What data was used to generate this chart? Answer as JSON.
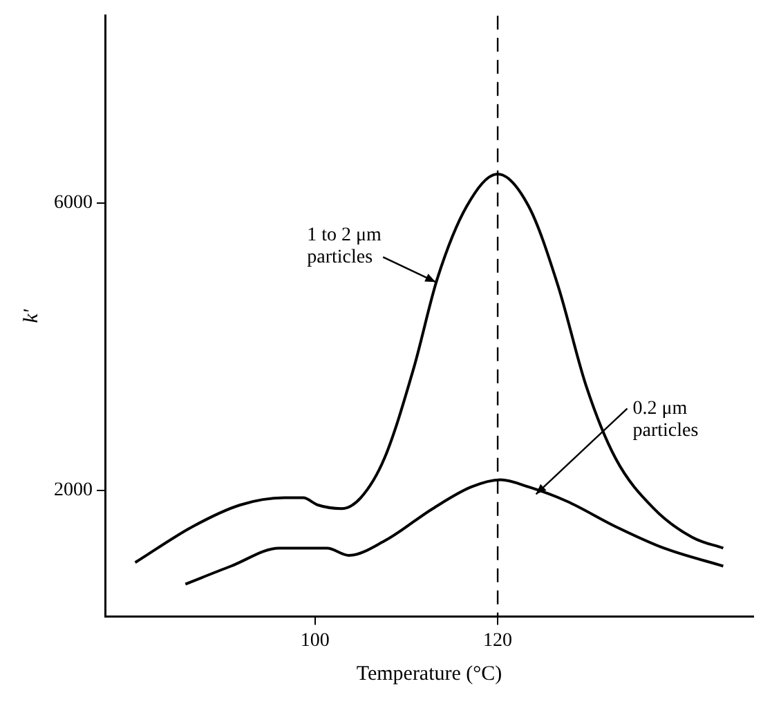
{
  "chart_data": {
    "type": "line",
    "xlabel": "Temperature (°C)",
    "ylabel": "k'",
    "xlim": [
      77,
      148
    ],
    "ylim": [
      250,
      8600
    ],
    "xticks": [
      100,
      120
    ],
    "yticks": [
      2000,
      6000
    ],
    "grid": false,
    "legend": false,
    "marker": "none",
    "line_style": "solid",
    "series": [
      {
        "color": "#000000",
        "x": [
          80.3,
          86.6,
          91.8,
          96.6,
          98.7,
          100.3,
          102.9,
          105,
          107.6,
          110.8,
          113.4,
          116.6,
          120,
          123.4,
          126.6,
          129.7,
          132.9,
          137.1,
          141.3,
          144.7
        ],
        "values": [
          1000,
          1500,
          1800,
          1900,
          1900,
          1800,
          1750,
          1900,
          2450,
          3700,
          4950,
          5950,
          6400,
          5950,
          4850,
          3450,
          2450,
          1750,
          1350,
          1200
        ]
      },
      {
        "color": "#000000",
        "x": [
          85.8,
          90.8,
          96.1,
          99.2,
          101.3,
          103.7,
          107.6,
          112.9,
          117.1,
          120.3,
          123.4,
          127.6,
          132.9,
          138.2,
          144.7
        ],
        "values": [
          700,
          950,
          1200,
          1200,
          1200,
          1100,
          1300,
          1750,
          2050,
          2150,
          2050,
          1850,
          1500,
          1200,
          950
        ]
      }
    ],
    "ref_lines": [
      {
        "axis": "x",
        "value": 120,
        "line_style": "dashed",
        "color": "#000000"
      }
    ],
    "annotations": [
      {
        "text": "1 to 2 μm particles",
        "x": 113.5,
        "y": 4900
      },
      {
        "text": "0.2 μm particles",
        "x": 124.5,
        "y": 1950
      }
    ]
  }
}
